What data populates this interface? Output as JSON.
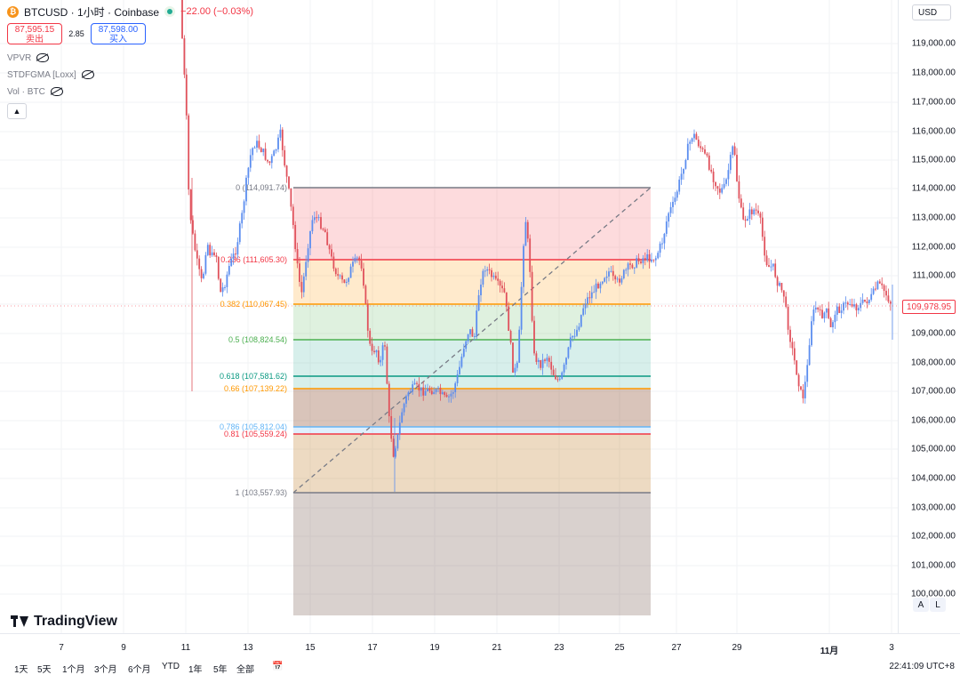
{
  "header": {
    "symbol_line": "BTCUSD · 1小时 · Coinbase",
    "btc_glyph": "₿",
    "change": "−22.00 (−0.03%)",
    "sell_price": "87,595.15",
    "sell_label": "卖出",
    "spread": "2.85",
    "buy_price": "87,598.00",
    "buy_label": "买入",
    "indicators": [
      "VPVR",
      "STDFGMA [Loxx]",
      "Vol · BTC"
    ],
    "collapse_icon": "chevron-up-icon"
  },
  "currency_button": "USD",
  "price_axis": {
    "ticks": [
      "119,000.00",
      "118,000.00",
      "117,000.00",
      "116,000.00",
      "115,000.00",
      "114,000.00",
      "113,000.00",
      "112,000.00",
      "111,000.00",
      "110,000.00",
      "109,000.00",
      "108,000.00",
      "107,000.00",
      "106,000.00",
      "105,000.00",
      "104,000.00",
      "103,000.00",
      "102,000.00",
      "101,000.00",
      "100,000.00"
    ],
    "current_price": "109,978.95"
  },
  "time_axis": {
    "ticks": [
      "7",
      "9",
      "11",
      "13",
      "15",
      "17",
      "19",
      "21",
      "23",
      "25",
      "27",
      "29",
      "11月",
      "3"
    ]
  },
  "fib": {
    "levels": [
      {
        "label": "0 (114,091.74)",
        "color": "#787b86"
      },
      {
        "label": "0.236 (111,605.30)",
        "color": "#f23645"
      },
      {
        "label": "0.382 (110,067.45)",
        "color": "#ff9800"
      },
      {
        "label": "0.5 (108,824.54)",
        "color": "#4caf50"
      },
      {
        "label": "0.618 (107,581.62)",
        "color": "#089981"
      },
      {
        "label": "0.66 (107,139.22)",
        "color": "#ff9800"
      },
      {
        "label": "0.786 (105,812.04)",
        "color": "#64b5f6"
      },
      {
        "label": "0.81 (105,559.24)",
        "color": "#f23645"
      },
      {
        "label": "1 (103,557.93)",
        "color": "#787b86"
      }
    ]
  },
  "branding": "TradingView",
  "scale_buttons": [
    "A",
    "L"
  ],
  "range_buttons": [
    "1天",
    "5天",
    "1个月",
    "3个月",
    "6个月",
    "YTD",
    "1年",
    "5年",
    "全部"
  ],
  "clock": "22:41:09 UTC+8",
  "colors": {
    "up": "#5b8def",
    "down": "#e0525c",
    "accent": "#2962ff"
  }
}
